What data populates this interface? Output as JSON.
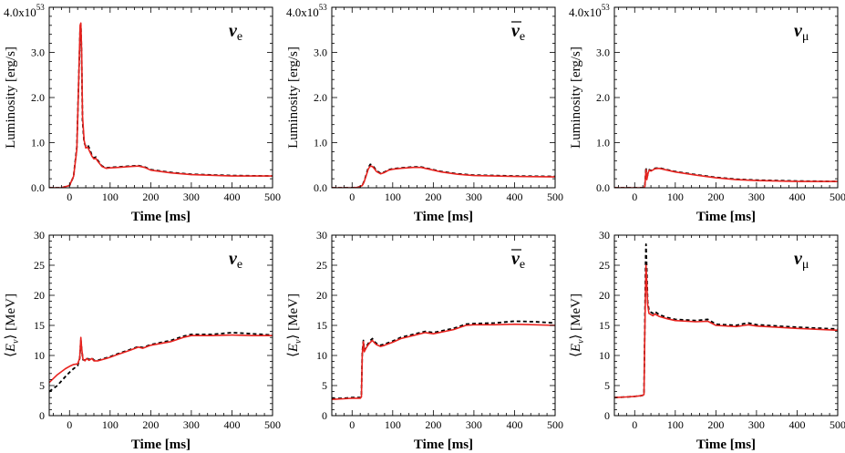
{
  "colors": {
    "red": "#e8231f",
    "black": "#000000"
  },
  "chart_data": [
    {
      "type": "line",
      "row": "luminosity",
      "col": 0,
      "species_symbol": "ν",
      "species_sub": "e",
      "species_bar": false,
      "xlabel": "Time [ms]",
      "ylabel": "Luminosity [erg/s]",
      "xlim": [
        -50,
        500
      ],
      "ylim": [
        0,
        4.0
      ],
      "x_ticks": [
        "0",
        "100",
        "200",
        "300",
        "400",
        "500"
      ],
      "y_ticks": [
        "0.0",
        "1.0",
        "2.0",
        "3.0"
      ],
      "scale_label": "4.0x10",
      "scale_exp": "53",
      "series": [
        {
          "name": "black-dashed",
          "color": "#000000",
          "dashed": true,
          "x": [
            -50,
            -20,
            0,
            10,
            18,
            22,
            26,
            28,
            30,
            32,
            36,
            40,
            45,
            50,
            55,
            60,
            65,
            70,
            80,
            90,
            100,
            120,
            150,
            170,
            185,
            200,
            250,
            300,
            400,
            500
          ],
          "y": [
            0.0,
            0.0,
            0.05,
            0.25,
            0.9,
            2.2,
            3.5,
            3.6,
            2.9,
            1.5,
            1.0,
            0.92,
            0.95,
            0.85,
            0.72,
            0.66,
            0.68,
            0.6,
            0.48,
            0.44,
            0.45,
            0.46,
            0.48,
            0.49,
            0.46,
            0.4,
            0.34,
            0.3,
            0.27,
            0.26
          ]
        },
        {
          "name": "red-solid",
          "color": "#e8231f",
          "dashed": false,
          "x": [
            -50,
            -20,
            0,
            10,
            18,
            22,
            26,
            28,
            30,
            32,
            36,
            40,
            45,
            50,
            55,
            60,
            65,
            70,
            80,
            90,
            100,
            120,
            150,
            170,
            185,
            200,
            250,
            300,
            400,
            500
          ],
          "y": [
            0.0,
            0.0,
            0.05,
            0.25,
            0.85,
            2.2,
            3.6,
            3.65,
            3.0,
            1.6,
            1.05,
            0.88,
            0.9,
            0.8,
            0.7,
            0.64,
            0.65,
            0.58,
            0.47,
            0.43,
            0.44,
            0.45,
            0.47,
            0.48,
            0.45,
            0.39,
            0.33,
            0.29,
            0.26,
            0.26
          ]
        }
      ]
    },
    {
      "type": "line",
      "row": "luminosity",
      "col": 1,
      "species_symbol": "ν",
      "species_sub": "e",
      "species_bar": true,
      "xlabel": "Time [ms]",
      "ylabel": "Luminosity [erg/s]",
      "xlim": [
        -50,
        500
      ],
      "ylim": [
        0,
        4.0
      ],
      "x_ticks": [
        "0",
        "100",
        "200",
        "300",
        "400",
        "500"
      ],
      "y_ticks": [
        "0.0",
        "1.0",
        "2.0",
        "3.0"
      ],
      "scale_label": "4.0x10",
      "scale_exp": "53",
      "series": [
        {
          "name": "black-dashed",
          "color": "#000000",
          "dashed": true,
          "x": [
            -50,
            0,
            15,
            25,
            30,
            35,
            40,
            45,
            50,
            55,
            60,
            70,
            80,
            90,
            100,
            120,
            150,
            170,
            190,
            220,
            260,
            300,
            400,
            500
          ],
          "y": [
            0.0,
            0.0,
            0.01,
            0.05,
            0.15,
            0.3,
            0.45,
            0.52,
            0.5,
            0.44,
            0.38,
            0.32,
            0.35,
            0.4,
            0.42,
            0.44,
            0.46,
            0.46,
            0.42,
            0.36,
            0.31,
            0.28,
            0.26,
            0.25
          ]
        },
        {
          "name": "red-solid",
          "color": "#e8231f",
          "dashed": false,
          "x": [
            -50,
            0,
            15,
            25,
            30,
            35,
            40,
            45,
            50,
            55,
            60,
            70,
            80,
            90,
            100,
            120,
            150,
            170,
            190,
            220,
            260,
            300,
            400,
            500
          ],
          "y": [
            0.0,
            0.0,
            0.01,
            0.05,
            0.14,
            0.28,
            0.42,
            0.48,
            0.47,
            0.42,
            0.36,
            0.31,
            0.34,
            0.39,
            0.41,
            0.43,
            0.45,
            0.45,
            0.41,
            0.35,
            0.3,
            0.27,
            0.25,
            0.24
          ]
        }
      ]
    },
    {
      "type": "line",
      "row": "luminosity",
      "col": 2,
      "species_symbol": "ν",
      "species_sub": "μ",
      "species_bar": false,
      "xlabel": "Time [ms]",
      "ylabel": "Luminosity [erg/s]",
      "xlim": [
        -50,
        500
      ],
      "ylim": [
        0,
        4.0
      ],
      "x_ticks": [
        "0",
        "100",
        "200",
        "300",
        "400",
        "500"
      ],
      "y_ticks": [
        "0.0",
        "1.0",
        "2.0",
        "3.0"
      ],
      "scale_label": "4.0x10",
      "scale_exp": "53",
      "series": [
        {
          "name": "black-dashed",
          "color": "#000000",
          "dashed": true,
          "x": [
            -50,
            0,
            20,
            25,
            28,
            30,
            33,
            36,
            40,
            50,
            60,
            70,
            80,
            100,
            150,
            200,
            250,
            300,
            400,
            500
          ],
          "y": [
            0.0,
            0.0,
            0.0,
            0.02,
            0.45,
            0.2,
            0.35,
            0.4,
            0.38,
            0.43,
            0.44,
            0.42,
            0.4,
            0.36,
            0.29,
            0.23,
            0.19,
            0.17,
            0.15,
            0.14
          ]
        },
        {
          "name": "red-solid",
          "color": "#e8231f",
          "dashed": false,
          "x": [
            -50,
            0,
            20,
            25,
            28,
            30,
            33,
            36,
            40,
            50,
            60,
            70,
            80,
            100,
            150,
            200,
            250,
            300,
            400,
            500
          ],
          "y": [
            0.0,
            0.0,
            0.0,
            0.02,
            0.4,
            0.18,
            0.33,
            0.39,
            0.37,
            0.42,
            0.43,
            0.41,
            0.39,
            0.35,
            0.28,
            0.22,
            0.18,
            0.16,
            0.14,
            0.14
          ]
        }
      ]
    },
    {
      "type": "line",
      "row": "energy",
      "col": 0,
      "species_symbol": "ν",
      "species_sub": "e",
      "species_bar": false,
      "xlabel": "Time [ms]",
      "ylabel": "⟨E_ν⟩ [MeV]",
      "xlim": [
        -50,
        500
      ],
      "ylim": [
        0,
        30
      ],
      "x_ticks": [
        "0",
        "100",
        "200",
        "300",
        "400",
        "500"
      ],
      "y_ticks": [
        "0",
        "5",
        "10",
        "15",
        "20",
        "25",
        "30"
      ],
      "series": [
        {
          "name": "black-dashed",
          "color": "#000000",
          "dashed": true,
          "x": [
            -50,
            -30,
            -10,
            0,
            10,
            20,
            25,
            28,
            30,
            33,
            38,
            42,
            48,
            55,
            60,
            70,
            80,
            90,
            100,
            120,
            150,
            170,
            180,
            200,
            250,
            280,
            300,
            350,
            400,
            450,
            500
          ],
          "y": [
            4.0,
            5.0,
            6.5,
            7.2,
            7.8,
            8.3,
            9.5,
            12.5,
            11.0,
            9.3,
            9.2,
            9.6,
            9.3,
            9.6,
            9.2,
            9.2,
            9.4,
            9.6,
            9.8,
            10.3,
            11.0,
            11.5,
            11.3,
            11.8,
            12.5,
            13.2,
            13.5,
            13.5,
            13.8,
            13.6,
            13.4
          ]
        },
        {
          "name": "red-solid",
          "color": "#e8231f",
          "dashed": false,
          "x": [
            -50,
            -30,
            -10,
            0,
            10,
            20,
            25,
            28,
            30,
            33,
            38,
            42,
            48,
            55,
            60,
            70,
            80,
            90,
            100,
            120,
            150,
            170,
            180,
            200,
            250,
            280,
            300,
            350,
            400,
            450,
            500
          ],
          "y": [
            5.5,
            6.8,
            7.8,
            8.2,
            8.5,
            8.6,
            9.5,
            13.0,
            11.2,
            9.4,
            9.1,
            9.5,
            9.2,
            9.5,
            9.1,
            9.1,
            9.3,
            9.5,
            9.7,
            10.2,
            10.9,
            11.4,
            11.2,
            11.7,
            12.3,
            13.0,
            13.3,
            13.3,
            13.4,
            13.3,
            13.3
          ]
        }
      ]
    },
    {
      "type": "line",
      "row": "energy",
      "col": 1,
      "species_symbol": "ν",
      "species_sub": "e",
      "species_bar": true,
      "xlabel": "Time [ms]",
      "ylabel": "⟨E_ν⟩ [MeV]",
      "xlim": [
        -50,
        500
      ],
      "ylim": [
        0,
        30
      ],
      "x_ticks": [
        "0",
        "100",
        "200",
        "300",
        "400",
        "500"
      ],
      "y_ticks": [
        "0",
        "5",
        "10",
        "15",
        "20",
        "25",
        "30"
      ],
      "series": [
        {
          "name": "black-dashed",
          "color": "#000000",
          "dashed": true,
          "x": [
            -50,
            -20,
            0,
            15,
            20,
            23,
            25,
            28,
            30,
            35,
            40,
            45,
            50,
            55,
            60,
            70,
            80,
            100,
            120,
            150,
            180,
            200,
            250,
            280,
            300,
            350,
            400,
            450,
            500
          ],
          "y": [
            2.8,
            2.9,
            3.0,
            3.0,
            3.0,
            3.2,
            10.5,
            12.5,
            10.8,
            11.5,
            12.0,
            12.5,
            12.8,
            12.3,
            12.0,
            11.7,
            11.9,
            12.4,
            13.0,
            13.5,
            14.0,
            13.8,
            14.5,
            15.2,
            15.3,
            15.4,
            15.7,
            15.6,
            15.4
          ]
        },
        {
          "name": "red-solid",
          "color": "#e8231f",
          "dashed": false,
          "x": [
            -50,
            -20,
            0,
            15,
            20,
            23,
            25,
            28,
            30,
            35,
            40,
            45,
            50,
            55,
            60,
            70,
            80,
            100,
            120,
            150,
            180,
            200,
            250,
            280,
            300,
            350,
            400,
            450,
            500
          ],
          "y": [
            2.7,
            2.8,
            2.9,
            2.9,
            2.9,
            3.1,
            10.2,
            12.3,
            10.6,
            11.3,
            11.8,
            12.2,
            12.5,
            12.1,
            11.8,
            11.5,
            11.7,
            12.2,
            12.8,
            13.3,
            13.8,
            13.6,
            14.3,
            15.0,
            15.1,
            15.1,
            15.2,
            15.1,
            15.0
          ]
        }
      ]
    },
    {
      "type": "line",
      "row": "energy",
      "col": 2,
      "species_symbol": "ν",
      "species_sub": "μ",
      "species_bar": false,
      "xlabel": "Time [ms]",
      "ylabel": "⟨E_ν⟩ [MeV]",
      "xlim": [
        -50,
        500
      ],
      "ylim": [
        0,
        30
      ],
      "x_ticks": [
        "0",
        "100",
        "200",
        "300",
        "400",
        "500"
      ],
      "y_ticks": [
        "0",
        "5",
        "10",
        "15",
        "20",
        "25",
        "30"
      ],
      "series": [
        {
          "name": "black-dashed",
          "color": "#000000",
          "dashed": true,
          "x": [
            -50,
            -20,
            0,
            15,
            20,
            23,
            25,
            27,
            28,
            30,
            32,
            35,
            40,
            45,
            50,
            60,
            80,
            100,
            150,
            180,
            200,
            250,
            270,
            280,
            300,
            400,
            500
          ],
          "y": [
            3.0,
            3.1,
            3.2,
            3.3,
            3.4,
            3.5,
            15.0,
            26.0,
            28.5,
            24.0,
            19.0,
            17.5,
            17.2,
            17.0,
            17.3,
            16.8,
            16.3,
            16.0,
            15.8,
            16.0,
            15.2,
            15.0,
            15.3,
            15.4,
            15.1,
            14.7,
            14.4
          ]
        },
        {
          "name": "red-solid",
          "color": "#e8231f",
          "dashed": false,
          "x": [
            -50,
            -20,
            0,
            15,
            20,
            23,
            25,
            27,
            28,
            30,
            32,
            35,
            40,
            45,
            50,
            60,
            80,
            100,
            150,
            180,
            200,
            250,
            270,
            280,
            300,
            400,
            500
          ],
          "y": [
            3.0,
            3.1,
            3.2,
            3.3,
            3.4,
            3.5,
            14.0,
            22.0,
            25.0,
            22.0,
            18.5,
            17.0,
            16.8,
            16.6,
            16.9,
            16.5,
            16.1,
            15.8,
            15.6,
            15.7,
            15.0,
            14.8,
            15.0,
            15.1,
            14.9,
            14.5,
            14.2
          ]
        }
      ]
    }
  ]
}
